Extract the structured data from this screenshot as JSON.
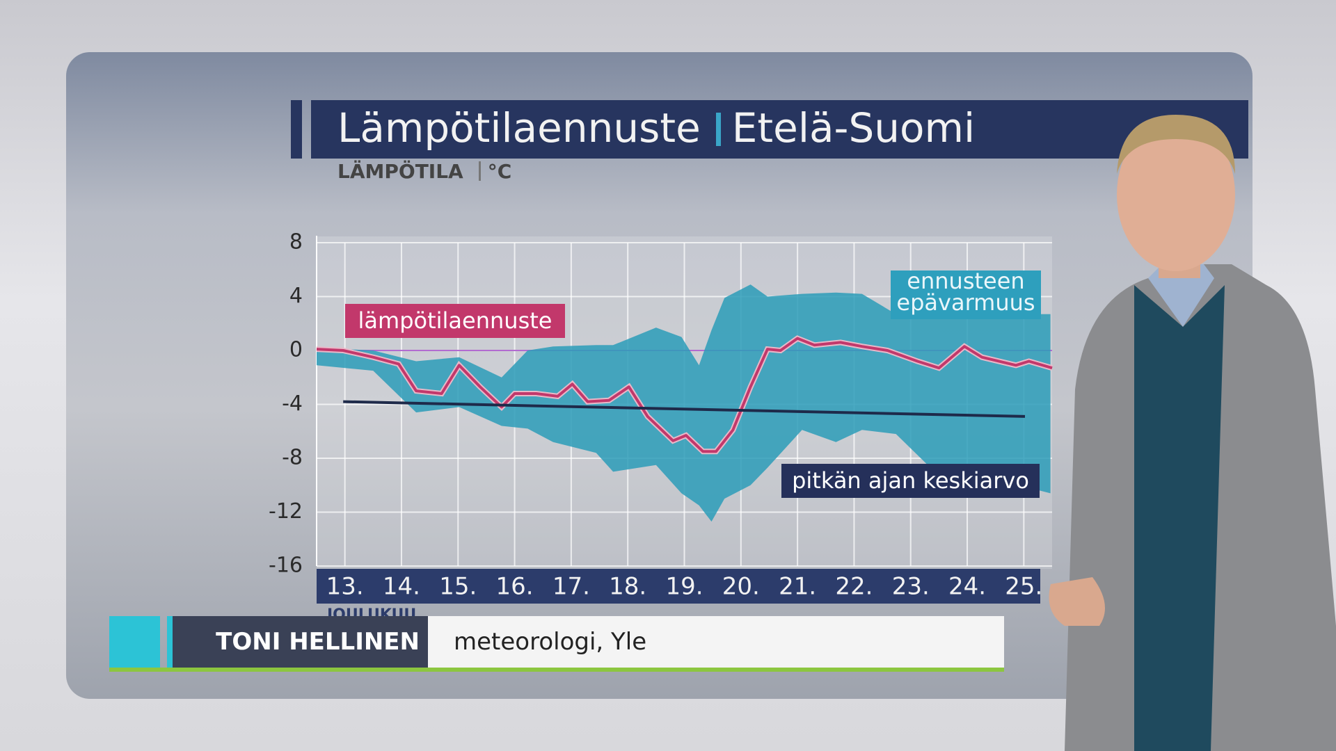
{
  "chart_data": {
    "type": "line",
    "title": "Lämpötilaennuste",
    "subtitle": "Etelä-Suomi",
    "y_label": "LÄMPÖTILA",
    "y_unit": "°C",
    "x_label": "JOULUKUU",
    "xlim": [
      13,
      26
    ],
    "xticks": [
      {
        "value": 13.5,
        "label": "13."
      },
      {
        "value": 14.5,
        "label": "14."
      },
      {
        "value": 15.5,
        "label": "15."
      },
      {
        "value": 16.5,
        "label": "16."
      },
      {
        "value": 17.5,
        "label": "17."
      },
      {
        "value": 18.5,
        "label": "18."
      },
      {
        "value": 19.5,
        "label": "19."
      },
      {
        "value": 20.5,
        "label": "20."
      },
      {
        "value": 21.5,
        "label": "21."
      },
      {
        "value": 22.5,
        "label": "22."
      },
      {
        "value": 23.5,
        "label": "23."
      },
      {
        "value": 24.5,
        "label": "24."
      },
      {
        "value": 25.5,
        "label": "25."
      }
    ],
    "ylim": [
      -16,
      8
    ],
    "yticks": [
      8,
      4,
      0,
      -4,
      -8,
      -12,
      -16
    ],
    "grid": true,
    "zero_line_color": "#b26bd0",
    "series": [
      {
        "name": "lämpötilaennuste",
        "color": "#c2386b",
        "x": [
          13.0,
          13.47,
          14.0,
          14.45,
          14.76,
          15.21,
          15.52,
          15.89,
          16.27,
          16.5,
          16.88,
          17.26,
          17.52,
          17.79,
          18.17,
          18.52,
          18.85,
          19.3,
          19.53,
          19.83,
          20.06,
          20.36,
          20.67,
          20.97,
          21.2,
          21.5,
          21.8,
          22.26,
          22.64,
          23.09,
          23.62,
          24.0,
          24.45,
          24.76,
          25.36,
          25.59,
          26.0
        ],
        "values": [
          0.1,
          0,
          -0.5,
          -1,
          -3,
          -3.2,
          -1.1,
          -2.7,
          -4.2,
          -3.2,
          -3.2,
          -3.4,
          -2.5,
          -3.8,
          -3.7,
          -2.7,
          -4.9,
          -6.7,
          -6.3,
          -7.5,
          -7.5,
          -5.9,
          -2.7,
          0.1,
          0,
          0.9,
          0.4,
          0.6,
          0.3,
          0,
          -0.8,
          -1.3,
          0.3,
          -0.5,
          -1.1,
          -0.8,
          -1.3
        ]
      },
      {
        "name": "ennusteen epävarmuus",
        "color": "#2b9cb8",
        "x": [
          13.0,
          14.0,
          14.76,
          15.52,
          16.27,
          16.73,
          17.18,
          17.94,
          18.24,
          19.0,
          19.45,
          19.76,
          19.98,
          20.21,
          20.67,
          20.97,
          21.58,
          22.18,
          22.64,
          23.24,
          23.85,
          24.76,
          25.97
        ],
        "low": [
          -1.1,
          -1.5,
          -4.6,
          -4.2,
          -5.6,
          -5.8,
          -6.8,
          -7.6,
          -9.0,
          -8.5,
          -10.6,
          -11.5,
          -12.7,
          -11.0,
          -10.0,
          -8.7,
          -5.9,
          -6.8,
          -5.9,
          -6.2,
          -8.7,
          -9.3,
          -10.6
        ],
        "high": [
          0.2,
          0.0,
          -0.8,
          -0.5,
          -2.0,
          0.0,
          0.3,
          0.4,
          0.4,
          1.7,
          1.0,
          -1.1,
          1.5,
          3.9,
          4.9,
          4.0,
          4.2,
          4.3,
          4.2,
          2.7,
          2.7,
          2.7,
          2.7
        ]
      },
      {
        "name": "pitkän ajan keskiarvo",
        "color": "#1e2a4a",
        "x": [
          13.47,
          25.52
        ],
        "values": [
          -3.8,
          -4.9
        ]
      }
    ]
  },
  "caption": {
    "name": "TONI HELLINEN",
    "role": "meteorologi, Yle"
  }
}
